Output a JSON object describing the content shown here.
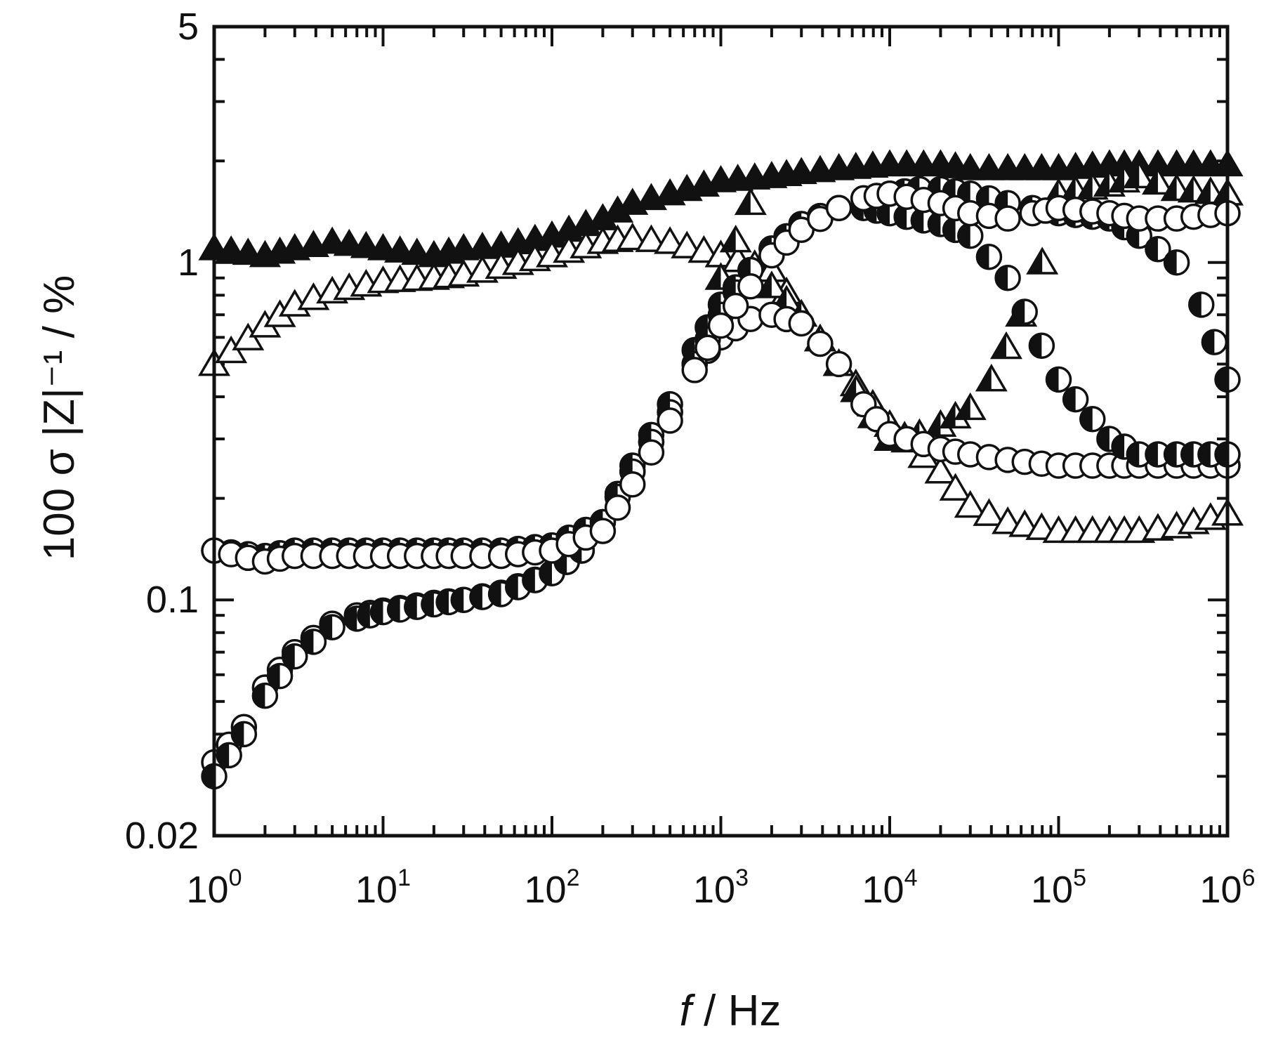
{
  "chart_data": {
    "type": "scatter",
    "title": "",
    "xlabel_italic": "f",
    "xlabel_rest": " / Hz",
    "ylabel": "100 σ |Z|⁻¹ / %",
    "x_scale": "log",
    "y_scale": "log",
    "xlim": [
      1,
      1000000
    ],
    "ylim": [
      0.02,
      5
    ],
    "x_ticks": [
      {
        "base": "10",
        "exp": "0",
        "value": 1
      },
      {
        "base": "10",
        "exp": "1",
        "value": 10
      },
      {
        "base": "10",
        "exp": "2",
        "value": 100
      },
      {
        "base": "10",
        "exp": "3",
        "value": 1000
      },
      {
        "base": "10",
        "exp": "4",
        "value": 10000
      },
      {
        "base": "10",
        "exp": "5",
        "value": 100000
      },
      {
        "base": "10",
        "exp": "6",
        "value": 1000000
      }
    ],
    "y_ticks": [
      {
        "label": "5",
        "value": 5
      },
      {
        "label": "1",
        "value": 1
      },
      {
        "label": "0.1",
        "value": 0.1
      },
      {
        "label": "0.02",
        "value": 0.02
      }
    ],
    "grid": false,
    "legend": "none",
    "series": [
      {
        "marker": "triangle-filled",
        "x": [
          1,
          2,
          3,
          5,
          10,
          20,
          30,
          50,
          100,
          200,
          300,
          500,
          1000,
          2000,
          3000,
          5000,
          10000,
          20000,
          30000,
          50000,
          100000,
          200000,
          300000,
          500000,
          1000000
        ],
        "y": [
          1.1,
          1.05,
          1.1,
          1.15,
          1.1,
          1.05,
          1.1,
          1.12,
          1.2,
          1.35,
          1.5,
          1.6,
          1.75,
          1.8,
          1.85,
          1.9,
          1.95,
          1.95,
          1.9,
          1.9,
          1.9,
          1.95,
          1.95,
          1.95,
          1.95
        ]
      },
      {
        "marker": "triangle-open",
        "x": [
          1,
          2,
          3,
          5,
          10,
          20,
          30,
          50,
          100,
          200,
          300,
          500,
          1000,
          2000,
          3000,
          5000,
          10000,
          20000,
          30000,
          50000,
          100000,
          200000,
          300000,
          500000,
          1000000
        ],
        "y": [
          0.5,
          0.65,
          0.75,
          0.82,
          0.88,
          0.9,
          0.92,
          0.97,
          1.05,
          1.15,
          1.18,
          1.15,
          1.05,
          0.95,
          0.7,
          0.5,
          0.33,
          0.24,
          0.19,
          0.17,
          0.16,
          0.16,
          0.16,
          0.165,
          0.18
        ]
      },
      {
        "marker": "triangle-half",
        "x": [
          1000,
          1500,
          2000,
          3000,
          5000,
          8000,
          10000,
          15000,
          20000,
          30000,
          40000,
          60000,
          80000,
          100000,
          200000,
          300000,
          500000,
          1000000
        ],
        "y": [
          0.9,
          1.5,
          0.85,
          0.7,
          0.5,
          0.35,
          0.3,
          0.31,
          0.33,
          0.37,
          0.45,
          0.7,
          1.0,
          1.6,
          1.7,
          1.8,
          1.65,
          1.6
        ]
      },
      {
        "marker": "circle-open",
        "x": [
          1,
          1.5,
          2,
          3,
          5,
          7,
          10,
          20,
          30,
          50,
          100,
          150,
          200,
          300,
          500,
          700,
          1000,
          1500,
          2000,
          3000,
          5000,
          7000,
          10000,
          20000,
          30000,
          50000,
          100000,
          200000,
          300000,
          500000,
          1000000
        ],
        "y": [
          0.033,
          0.042,
          0.055,
          0.07,
          0.085,
          0.09,
          0.093,
          0.098,
          0.1,
          0.105,
          0.12,
          0.14,
          0.17,
          0.24,
          0.36,
          0.5,
          0.6,
          0.68,
          0.7,
          0.66,
          0.5,
          0.38,
          0.31,
          0.28,
          0.27,
          0.26,
          0.25,
          0.25,
          0.25,
          0.25,
          0.25
        ]
      },
      {
        "marker": "circle-half",
        "x": [
          1,
          1.5,
          2,
          3,
          5,
          7,
          10,
          20,
          30,
          50,
          100,
          150,
          200,
          300,
          500,
          700,
          1000,
          1500,
          2000,
          3000,
          5000,
          7000,
          10000,
          20000,
          30000,
          50000,
          100000,
          200000,
          300000,
          500000,
          1000000
        ],
        "y": [
          0.03,
          0.04,
          0.052,
          0.068,
          0.083,
          0.088,
          0.092,
          0.097,
          0.1,
          0.104,
          0.12,
          0.14,
          0.17,
          0.25,
          0.38,
          0.55,
          0.75,
          0.95,
          1.1,
          1.3,
          1.45,
          1.45,
          1.4,
          1.3,
          1.2,
          0.9,
          0.45,
          0.3,
          0.27,
          0.27,
          0.27
        ]
      },
      {
        "marker": "circle-half",
        "x": [
          1,
          2,
          3,
          5,
          10,
          20,
          30,
          50,
          100,
          200,
          300,
          500,
          700,
          1000,
          1500,
          2000,
          3000,
          5000,
          7000,
          10000,
          15000,
          20000,
          30000,
          50000,
          70000,
          100000,
          200000,
          300000,
          500000,
          700000,
          1000000
        ],
        "y": [
          0.14,
          0.135,
          0.14,
          0.14,
          0.14,
          0.14,
          0.14,
          0.14,
          0.145,
          0.17,
          0.24,
          0.36,
          0.5,
          0.7,
          0.95,
          1.1,
          1.3,
          1.45,
          1.55,
          1.6,
          1.65,
          1.65,
          1.6,
          1.5,
          1.45,
          1.4,
          1.35,
          1.2,
          1.0,
          0.75,
          0.45
        ]
      },
      {
        "marker": "circle-open",
        "x": [
          1,
          2,
          3,
          5,
          10,
          20,
          30,
          50,
          100,
          200,
          300,
          500,
          700,
          1000,
          1500,
          2000,
          3000,
          5000,
          7000,
          10000,
          20000,
          30000,
          50000,
          70000,
          100000,
          200000,
          300000,
          500000,
          1000000
        ],
        "y": [
          0.14,
          0.13,
          0.135,
          0.135,
          0.135,
          0.135,
          0.135,
          0.135,
          0.14,
          0.16,
          0.22,
          0.34,
          0.48,
          0.65,
          0.85,
          1.05,
          1.25,
          1.45,
          1.55,
          1.6,
          1.5,
          1.4,
          1.35,
          1.4,
          1.45,
          1.4,
          1.35,
          1.35,
          1.4
        ]
      }
    ]
  }
}
